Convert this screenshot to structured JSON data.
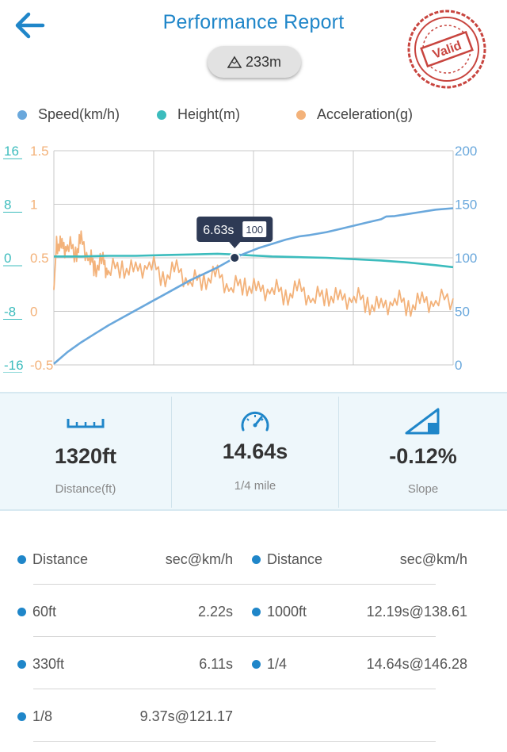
{
  "header": {
    "title": "Performance Report",
    "altitude": "233m",
    "stamp_text": "Valid"
  },
  "legend": [
    {
      "label": "Speed(km/h)",
      "color": "#6aa8dc"
    },
    {
      "label": "Height(m)",
      "color": "#3cbcbd"
    },
    {
      "label": "Acceleration(g)",
      "color": "#f3b27a"
    }
  ],
  "chart_data": {
    "type": "line",
    "axes": {
      "height": {
        "ticks": [
          "16",
          "8",
          "0",
          "-8",
          "-16"
        ],
        "range": [
          -16,
          16
        ],
        "color": "#3cbcbd"
      },
      "acceleration": {
        "ticks": [
          "1.5",
          "1",
          "0.5",
          "0",
          "-0.5"
        ],
        "range": [
          -0.5,
          1.5
        ],
        "color": "#f3b27a"
      },
      "speed": {
        "ticks": [
          "200",
          "150",
          "100",
          "50",
          "0"
        ],
        "range": [
          0,
          200
        ],
        "color": "#6aa8dc"
      }
    },
    "x_range": [
      0,
      14.64
    ],
    "series": [
      {
        "name": "Speed(km/h)",
        "axis": "speed",
        "color": "#6aa8dc",
        "x": [
          0,
          0.5,
          1,
          1.5,
          2,
          2.5,
          3,
          3.5,
          4,
          4.5,
          5,
          5.5,
          6,
          6.63,
          7,
          7.5,
          8,
          8.5,
          9,
          9.37,
          10,
          10.5,
          11,
          11.5,
          12,
          12.19,
          12.5,
          13,
          13.5,
          14,
          14.64
        ],
        "y": [
          1,
          12,
          21,
          29,
          37,
          44,
          51,
          58,
          65,
          72,
          79,
          85,
          91,
          100,
          104,
          109,
          113,
          117,
          120,
          121.17,
          124,
          127,
          130,
          133,
          136,
          138.61,
          139,
          141,
          143,
          145,
          146.28
        ]
      },
      {
        "name": "Height(m)",
        "axis": "height",
        "color": "#3cbcbd",
        "x": [
          0,
          1,
          2,
          3,
          4,
          5,
          6,
          6.63,
          7,
          8,
          9,
          10,
          11,
          12,
          13,
          14,
          14.64
        ],
        "y": [
          0.2,
          0.2,
          0.3,
          0.3,
          0.4,
          0.5,
          0.6,
          0.5,
          0.4,
          0.2,
          0.1,
          0,
          -0.2,
          -0.4,
          -0.7,
          -1.1,
          -1.4
        ]
      },
      {
        "name": "Acceleration(g)",
        "axis": "acceleration",
        "color": "#f3b27a",
        "x": [
          0,
          0.1,
          0.3,
          0.5,
          0.8,
          1,
          1.3,
          1.5,
          1.8,
          2,
          2.5,
          3,
          3.5,
          4,
          4.5,
          5,
          5.5,
          6,
          6.5,
          7,
          7.5,
          8,
          8.5,
          9,
          9.5,
          10,
          10.5,
          11,
          11.5,
          12,
          12.5,
          13,
          13.5,
          14,
          14.64
        ],
        "y": [
          0.2,
          0.65,
          0.58,
          0.62,
          0.55,
          0.65,
          0.5,
          0.42,
          0.45,
          0.38,
          0.42,
          0.36,
          0.46,
          0.32,
          0.38,
          0.28,
          0.3,
          0.33,
          0.22,
          0.26,
          0.18,
          0.22,
          0.15,
          0.2,
          0.12,
          0.16,
          0.1,
          0.14,
          0.08,
          0.02,
          0.12,
          0.05,
          0.08,
          0.1,
          0.12
        ]
      }
    ],
    "marker": {
      "x": 6.63,
      "time_label": "6.63s",
      "value_label": "100"
    },
    "grid": true
  },
  "stats": [
    {
      "value": "1320ft",
      "label": "Distance(ft)",
      "icon": "ruler-icon"
    },
    {
      "value": "14.64s",
      "label": "1/4 mile",
      "icon": "speedometer-icon"
    },
    {
      "value": "-0.12%",
      "label": "Slope",
      "icon": "slope-icon"
    }
  ],
  "table": {
    "rows": [
      [
        {
          "k": "Distance",
          "v": "sec@km/h"
        },
        {
          "k": "Distance",
          "v": "sec@km/h"
        }
      ],
      [
        {
          "k": "60ft",
          "v": "2.22s"
        },
        {
          "k": "1000ft",
          "v": "12.19s@138.61"
        }
      ],
      [
        {
          "k": "330ft",
          "v": "6.11s"
        },
        {
          "k": "1/4",
          "v": "14.64s@146.28"
        }
      ],
      [
        {
          "k": "1/8",
          "v": "9.37s@121.17"
        },
        null
      ]
    ]
  }
}
